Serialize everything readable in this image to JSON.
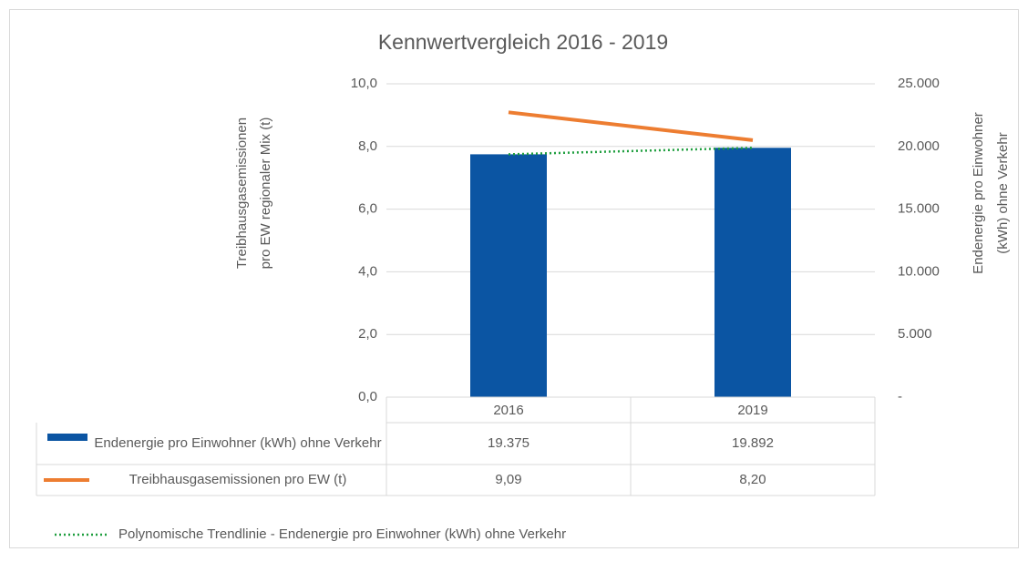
{
  "chart_data": {
    "type": "bar_line_table",
    "title": "Kennwertvergleich 2016 - 2019",
    "ylabel": [
      "Treibhausgasemissionen",
      "pro EW regionaler Mix (t)"
    ],
    "y2label": [
      "Endenergie pro Einwohner",
      "(kWh) ohne Verkehr"
    ],
    "categories": [
      "2016",
      "2019"
    ],
    "ylim": [
      0,
      10
    ],
    "yticks": [
      {
        "value": 0,
        "label": "0,0"
      },
      {
        "value": 2,
        "label": "2,0"
      },
      {
        "value": 4,
        "label": "4,0"
      },
      {
        "value": 6,
        "label": "6,0"
      },
      {
        "value": 8,
        "label": "8,0"
      },
      {
        "value": 10,
        "label": "10,0"
      }
    ],
    "y2lim": [
      0,
      25000
    ],
    "y2ticks": [
      {
        "value": 0,
        "label": "-"
      },
      {
        "value": 5000,
        "label": "5.000"
      },
      {
        "value": 10000,
        "label": "10.000"
      },
      {
        "value": 15000,
        "label": "15.000"
      },
      {
        "value": 20000,
        "label": "20.000"
      },
      {
        "value": 25000,
        "label": "25.000"
      }
    ],
    "grid": true,
    "series": [
      {
        "name": "Endenergie pro Einwohner (kWh) ohne Verkehr",
        "type": "bar",
        "axis": "y2",
        "color": "#0b55a3",
        "values": [
          19375,
          19892
        ],
        "value_labels": [
          "19.375",
          "19.892"
        ]
      },
      {
        "name": "Treibhausgasemissionen pro EW (t)",
        "type": "line",
        "axis": "y",
        "color": "#ed7d31",
        "values": [
          9.09,
          8.2
        ],
        "value_labels": [
          "9,09",
          "8,20"
        ]
      }
    ],
    "trendline": {
      "name": "Polynomische Trendlinie - Endenergie pro Einwohner (kWh) ohne Verkehr",
      "color": "#1e9e3e"
    }
  }
}
